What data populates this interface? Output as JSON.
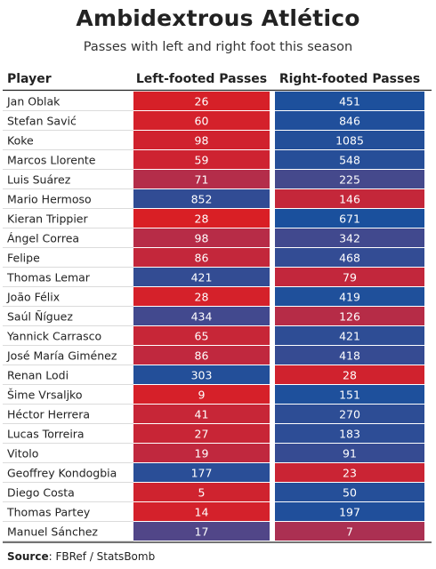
{
  "title": "Ambidextrous Atlético",
  "subtitle": "Passes with left and right foot this season",
  "source_label": "Source",
  "source_text": ": FBRef / StatsBomb",
  "chart_data": {
    "type": "table",
    "columns": [
      "Player",
      "Left-footed Passes",
      "Right-footed Passes"
    ],
    "color_scale": {
      "low": "#e41b1b",
      "high": "#1252a0",
      "mid": "#8a3c72"
    },
    "rows": [
      {
        "player": "Jan Oblak",
        "left": 26,
        "right": 451
      },
      {
        "player": "Stefan Savić",
        "left": 60,
        "right": 846
      },
      {
        "player": "Koke",
        "left": 98,
        "right": 1085
      },
      {
        "player": "Marcos Llorente",
        "left": 59,
        "right": 548
      },
      {
        "player": "Luis Suárez",
        "left": 71,
        "right": 225
      },
      {
        "player": "Mario Hermoso",
        "left": 852,
        "right": 146
      },
      {
        "player": "Kieran Trippier",
        "left": 28,
        "right": 671
      },
      {
        "player": "Ángel Correa",
        "left": 98,
        "right": 342
      },
      {
        "player": "Felipe",
        "left": 86,
        "right": 468
      },
      {
        "player": "Thomas Lemar",
        "left": 421,
        "right": 79
      },
      {
        "player": "João Félix",
        "left": 28,
        "right": 419
      },
      {
        "player": "Saúl Ñíguez",
        "left": 434,
        "right": 126
      },
      {
        "player": "Yannick Carrasco",
        "left": 65,
        "right": 421
      },
      {
        "player": "José María Giménez",
        "left": 86,
        "right": 418
      },
      {
        "player": "Renan Lodi",
        "left": 303,
        "right": 28
      },
      {
        "player": "Šime Vrsaljko",
        "left": 9,
        "right": 151
      },
      {
        "player": "Héctor Herrera",
        "left": 41,
        "right": 270
      },
      {
        "player": "Lucas Torreira",
        "left": 27,
        "right": 183
      },
      {
        "player": "Vitolo",
        "left": 19,
        "right": 91
      },
      {
        "player": "Geoffrey Kondogbia",
        "left": 177,
        "right": 23
      },
      {
        "player": "Diego Costa",
        "left": 5,
        "right": 50
      },
      {
        "player": "Thomas Partey",
        "left": 14,
        "right": 197
      },
      {
        "player": "Manuel Sánchez",
        "left": 17,
        "right": 7
      }
    ]
  }
}
